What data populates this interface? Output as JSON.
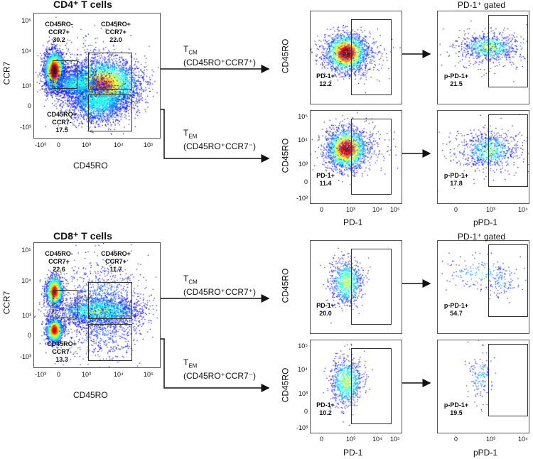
{
  "sections": [
    {
      "title": "CD4⁺ T cells",
      "main_plot": {
        "x_axis_label": "CD45RO",
        "y_axis_label": "CCR7",
        "x_ticks": [
          "-10³",
          "0",
          "10³",
          "10⁴",
          "10⁵"
        ],
        "y_ticks": [
          "10⁵",
          "10⁴",
          "10³",
          "0",
          "-10³"
        ],
        "gates": [
          {
            "lines": [
              "CD45RO-",
              "CCR7+",
              "30.2"
            ]
          },
          {
            "lines": [
              "CD45RO+",
              "CCR7+",
              "22.0"
            ]
          },
          {
            "lines": [
              "CD45RO+",
              "CCR7-",
              "17.5"
            ]
          }
        ]
      },
      "paths": [
        {
          "main": "T",
          "sub": "CM",
          "phenotype": "(CD45RO⁺CCR7⁺)"
        },
        {
          "main": "T",
          "sub": "EM",
          "phenotype": "(CD45RO⁺CCR7⁻)"
        }
      ],
      "pd1_column": {
        "y_axis_label": "CD45RO",
        "x_axis_label": "PD-1",
        "x_ticks": [
          "0",
          "10³",
          "10⁴",
          "10⁵"
        ],
        "y_ticks": [
          "10⁵",
          "10⁴",
          "10³",
          "0",
          "-10³"
        ],
        "plots": [
          {
            "gate_label": "PD-1+",
            "value": "12.2"
          },
          {
            "gate_label": "PD-1+",
            "value": "11.4"
          }
        ]
      },
      "ppd1_column": {
        "title": "PD-1⁺ gated",
        "x_axis_label": "pPD-1",
        "x_ticks": [
          "0",
          "10³",
          "10⁴"
        ],
        "plots": [
          {
            "gate_label": "p-PD-1+",
            "value": "21.5"
          },
          {
            "gate_label": "p-PD-1+",
            "value": "17.8"
          }
        ]
      }
    },
    {
      "title": "CD8⁺ T cells",
      "main_plot": {
        "x_axis_label": "CD45RO",
        "y_axis_label": "CCR7",
        "x_ticks": [
          "-10³",
          "0",
          "10³",
          "10⁴",
          "10⁵"
        ],
        "y_ticks": [
          "10⁵",
          "10⁴",
          "10³",
          "0",
          "-10³"
        ],
        "gates": [
          {
            "lines": [
              "CD45RO-",
              "CCR7+",
              "22.6"
            ]
          },
          {
            "lines": [
              "CD45RO+",
              "CCR7+",
              "11.7"
            ]
          },
          {
            "lines": [
              "CD45RO+",
              "CCR7-",
              "13.3"
            ]
          }
        ]
      },
      "paths": [
        {
          "main": "T",
          "sub": "CM",
          "phenotype": "(CD45RO⁺CCR7⁺)"
        },
        {
          "main": "T",
          "sub": "EM",
          "phenotype": "(CD45RO⁺CCR7⁻)"
        }
      ],
      "pd1_column": {
        "y_axis_label": "CD45RO",
        "x_axis_label": "PD-1",
        "x_ticks": [
          "0",
          "10³",
          "10⁴",
          "10⁵"
        ],
        "y_ticks": [
          "10⁵",
          "10⁴",
          "10³",
          "0",
          "-10³"
        ],
        "plots": [
          {
            "gate_label": "PD-1+",
            "value": "20.0"
          },
          {
            "gate_label": "PD-1+",
            "value": "10.2"
          }
        ]
      },
      "ppd1_column": {
        "title": "PD-1⁺ gated",
        "x_axis_label": "pPD-1",
        "x_ticks": [
          "0",
          "10³",
          "10⁴"
        ],
        "plots": [
          {
            "gate_label": "p-PD-1+",
            "value": "54.7"
          },
          {
            "gate_label": "p-PD-1+",
            "value": "19.5"
          }
        ]
      }
    }
  ],
  "colors": {
    "density_colormap": "jet",
    "gate_line": "#333333",
    "arrow": "#111111"
  }
}
